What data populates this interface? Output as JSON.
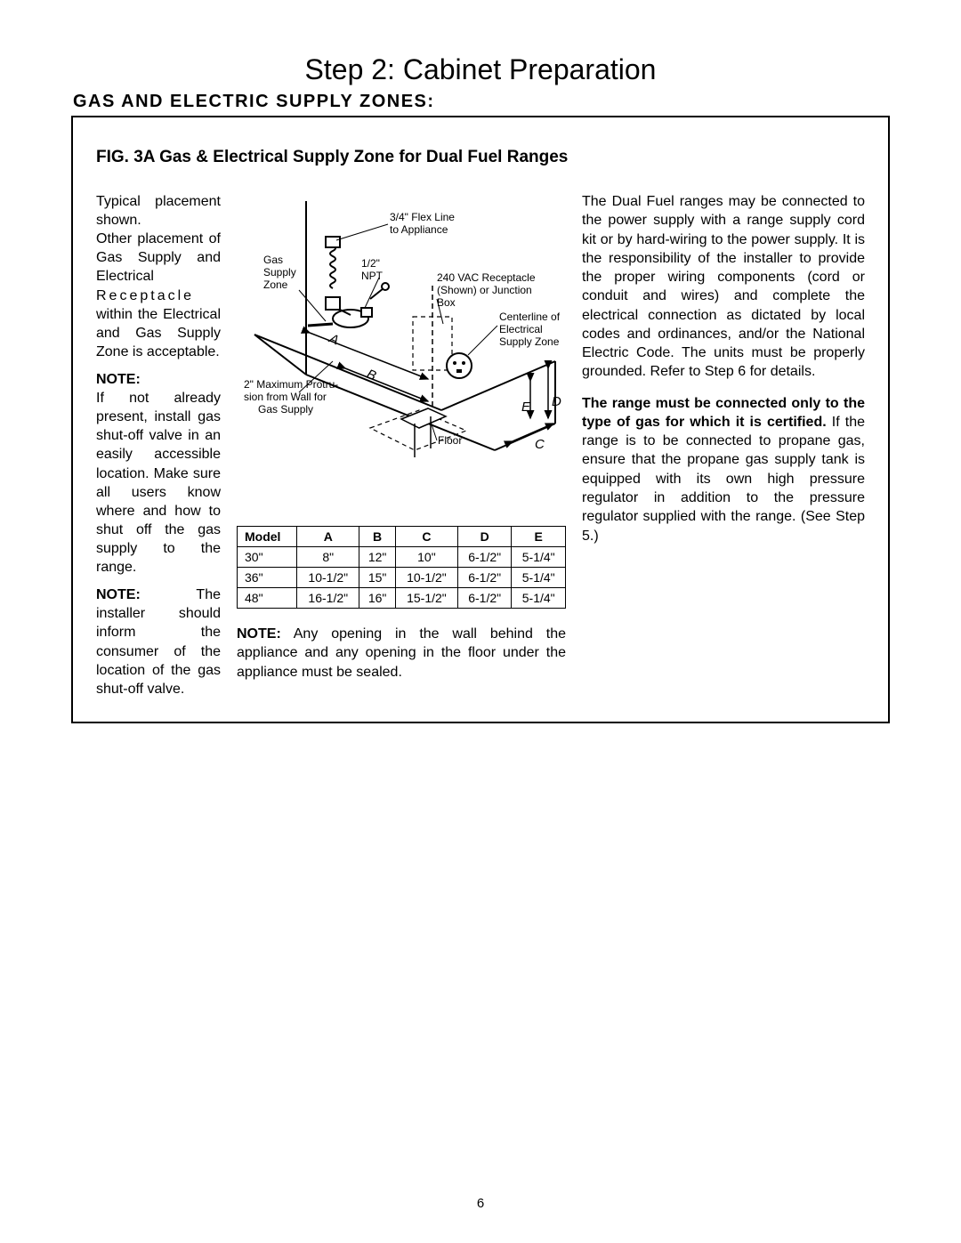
{
  "step_title": "Step 2:  Cabinet Preparation",
  "section_title": "GAS  AND  ELECTRIC  SUPPLY  ZONES:",
  "fig_title": "FIG. 3A Gas & Electrical Supply Zone for Dual Fuel Ranges",
  "left": {
    "p1a": "Typical placement shown.",
    "p1b": "Other placement of Gas Supply and Electrical ",
    "p1c": "Receptacle",
    "p1d": " within the Electrical and Gas Supply Zone is acceptable.",
    "note_label": "NOTE:",
    "p2": "If not already present, install gas shut-off valve in an easily accessible location. Make sure all users know where and how to shut off the gas supply to the range.",
    "p3a": "NOTE:",
    "p3b": " The installer should inform the consumer of the location of the gas shut-off valve."
  },
  "diagram": {
    "flex_line": "3/4\" Flex Line",
    "to_appliance": "to Appliance",
    "gas": "Gas",
    "supply": "Supply",
    "zone": "Zone",
    "npt1": "1/2\"",
    "npt2": "NPT",
    "recept1": "240 VAC Receptacle",
    "recept2": "(Shown) or Junction",
    "recept3": "Box",
    "center1": "Centerline of",
    "center2": "Electrical",
    "center3": "Supply Zone",
    "protr1": "2\" Maximum Protru-",
    "protr2": "sion from Wall for",
    "protr3": "Gas Supply",
    "floor": "Floor",
    "A": "A",
    "B": "B",
    "C": "C",
    "D": "D",
    "E": "E"
  },
  "table": {
    "headers": [
      "Model",
      "A",
      "B",
      "C",
      "D",
      "E"
    ],
    "rows": [
      [
        "30\"",
        "8\"",
        "12\"",
        "10\"",
        "6-1/2\"",
        "5-1/4\""
      ],
      [
        "36\"",
        "10-1/2\"",
        "15\"",
        "10-1/2\"",
        "6-1/2\"",
        "5-1/4\""
      ],
      [
        "48\"",
        "16-1/2\"",
        "16\"",
        "15-1/2\"",
        "6-1/2\"",
        "5-1/4\""
      ]
    ]
  },
  "mid_note_bold": "NOTE:",
  "mid_note": " Any opening in the wall behind the appliance and any opening in the floor under the appliance must be sealed.",
  "right": {
    "p1": "The Dual Fuel ranges may be connected to the power supply with a  range supply cord kit or by hard-wiring to the power supply. It is the responsibility of the installer to provide the proper wiring components (cord or conduit and wires) and complete the electrical connection as dictated by local codes and ordinances, and/or the National Electric Code. The units must be properly grounded. Refer to Step 6 for details.",
    "p2a": "The range must be connected only to the type of gas for which it is certified.",
    "p2b": " If the range is to be connected to propane gas, ensure that the propane gas supply tank is equipped with its own high pressure regulator in addition to the pressure regulator supplied with the range. (See Step 5.)"
  },
  "page_number": "6"
}
